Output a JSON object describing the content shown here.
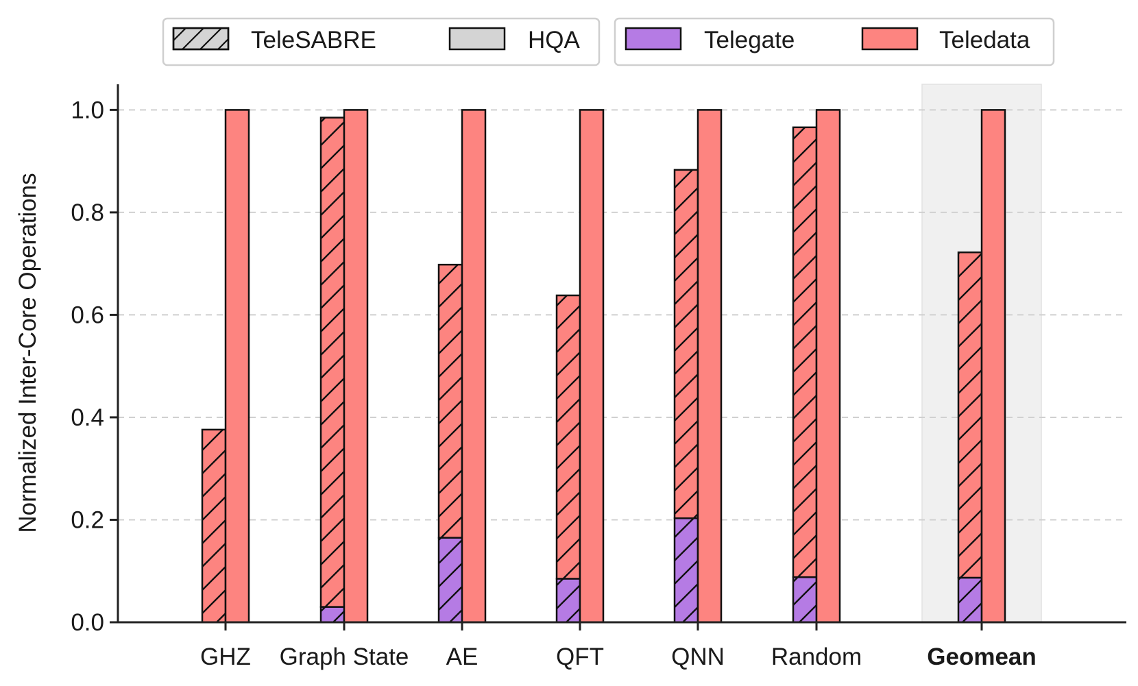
{
  "chart_data": {
    "type": "bar",
    "stacked": true,
    "ylabel": "Normalized Inter-Core Operations",
    "ylim": [
      0,
      1.05
    ],
    "yticks": [
      "0.0",
      "0.2",
      "0.4",
      "0.6",
      "0.8",
      "1.0"
    ],
    "ytick_values": [
      0,
      0.2,
      0.4,
      0.6,
      0.8,
      1.0
    ],
    "grid": "horizontal dashed",
    "categories": [
      "GHZ",
      "Graph State",
      "AE",
      "QFT",
      "QNN",
      "Random",
      "Geomean"
    ],
    "highlight_category": "Geomean",
    "methods": [
      {
        "name": "TeleSABRE",
        "pattern": "hatched",
        "telegate": [
          0.0,
          0.03,
          0.165,
          0.085,
          0.203,
          0.088,
          0.087
        ],
        "teledata": [
          0.376,
          0.955,
          0.533,
          0.553,
          0.68,
          0.878,
          0.635
        ]
      },
      {
        "name": "HQA",
        "pattern": "solid",
        "telegate": [
          0,
          0,
          0,
          0,
          0,
          0,
          0
        ],
        "teledata": [
          1.0,
          1.0,
          1.0,
          1.0,
          1.0,
          1.0,
          1.0
        ]
      }
    ],
    "legend": {
      "placement": "top",
      "methods": [
        {
          "label": "TeleSABRE",
          "pattern": "hatched"
        },
        {
          "label": "HQA",
          "pattern": "solid"
        }
      ],
      "operations": [
        {
          "label": "Telegate",
          "color": "#b57be4"
        },
        {
          "label": "Teledata",
          "color": "#fd8480"
        }
      ]
    },
    "colors": {
      "telegate": "#b57be4",
      "teledata": "#fd8480",
      "highlight_bg": "#f0f0f0",
      "grid": "#d0d0d0"
    }
  }
}
